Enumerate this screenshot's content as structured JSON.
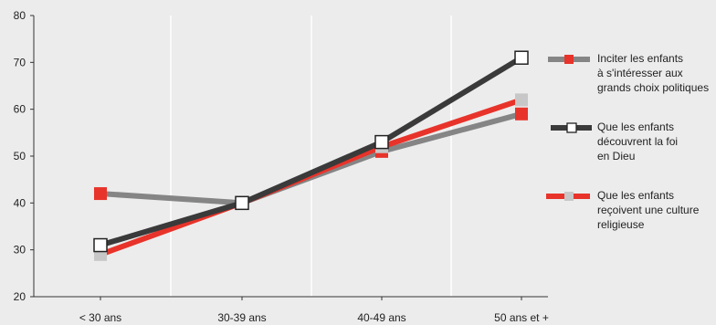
{
  "chart_data": {
    "type": "line",
    "categories": [
      "< 30 ans",
      "30-39  ans",
      "40-49 ans",
      "50 ans et +"
    ],
    "ylim": [
      20,
      80
    ],
    "yticks": [
      "20",
      "30",
      "40",
      "50",
      "60",
      "70",
      "80"
    ],
    "grid": true,
    "legend_position": "right",
    "series": [
      {
        "name": "Inciter les enfants à s'intéresser aux grands choix politiques",
        "legend_lines": [
          "Inciter les enfants",
          "à s'intéresser aux",
          "grands choix politiques"
        ],
        "values": [
          42,
          40,
          51,
          59
        ],
        "line_color": "#858585",
        "marker_color": "#e8332a",
        "marker": "square-filled"
      },
      {
        "name": "Que les enfants découvrent la foi en Dieu",
        "legend_lines": [
          "Que les enfants",
          "découvrent la foi",
          "en Dieu"
        ],
        "values": [
          31,
          40,
          53,
          71
        ],
        "line_color": "#3a3a3a",
        "marker_color": "#ffffff",
        "marker": "square-open"
      },
      {
        "name": "Que les enfants reçoivent une culture religieuse",
        "legend_lines": [
          "Que les enfants",
          "reçoivent une culture",
          "religieuse"
        ],
        "values": [
          29,
          40,
          52,
          62
        ],
        "line_color": "#e8332a",
        "marker_color": "#c7c7c7",
        "marker": "square-filled"
      }
    ]
  }
}
